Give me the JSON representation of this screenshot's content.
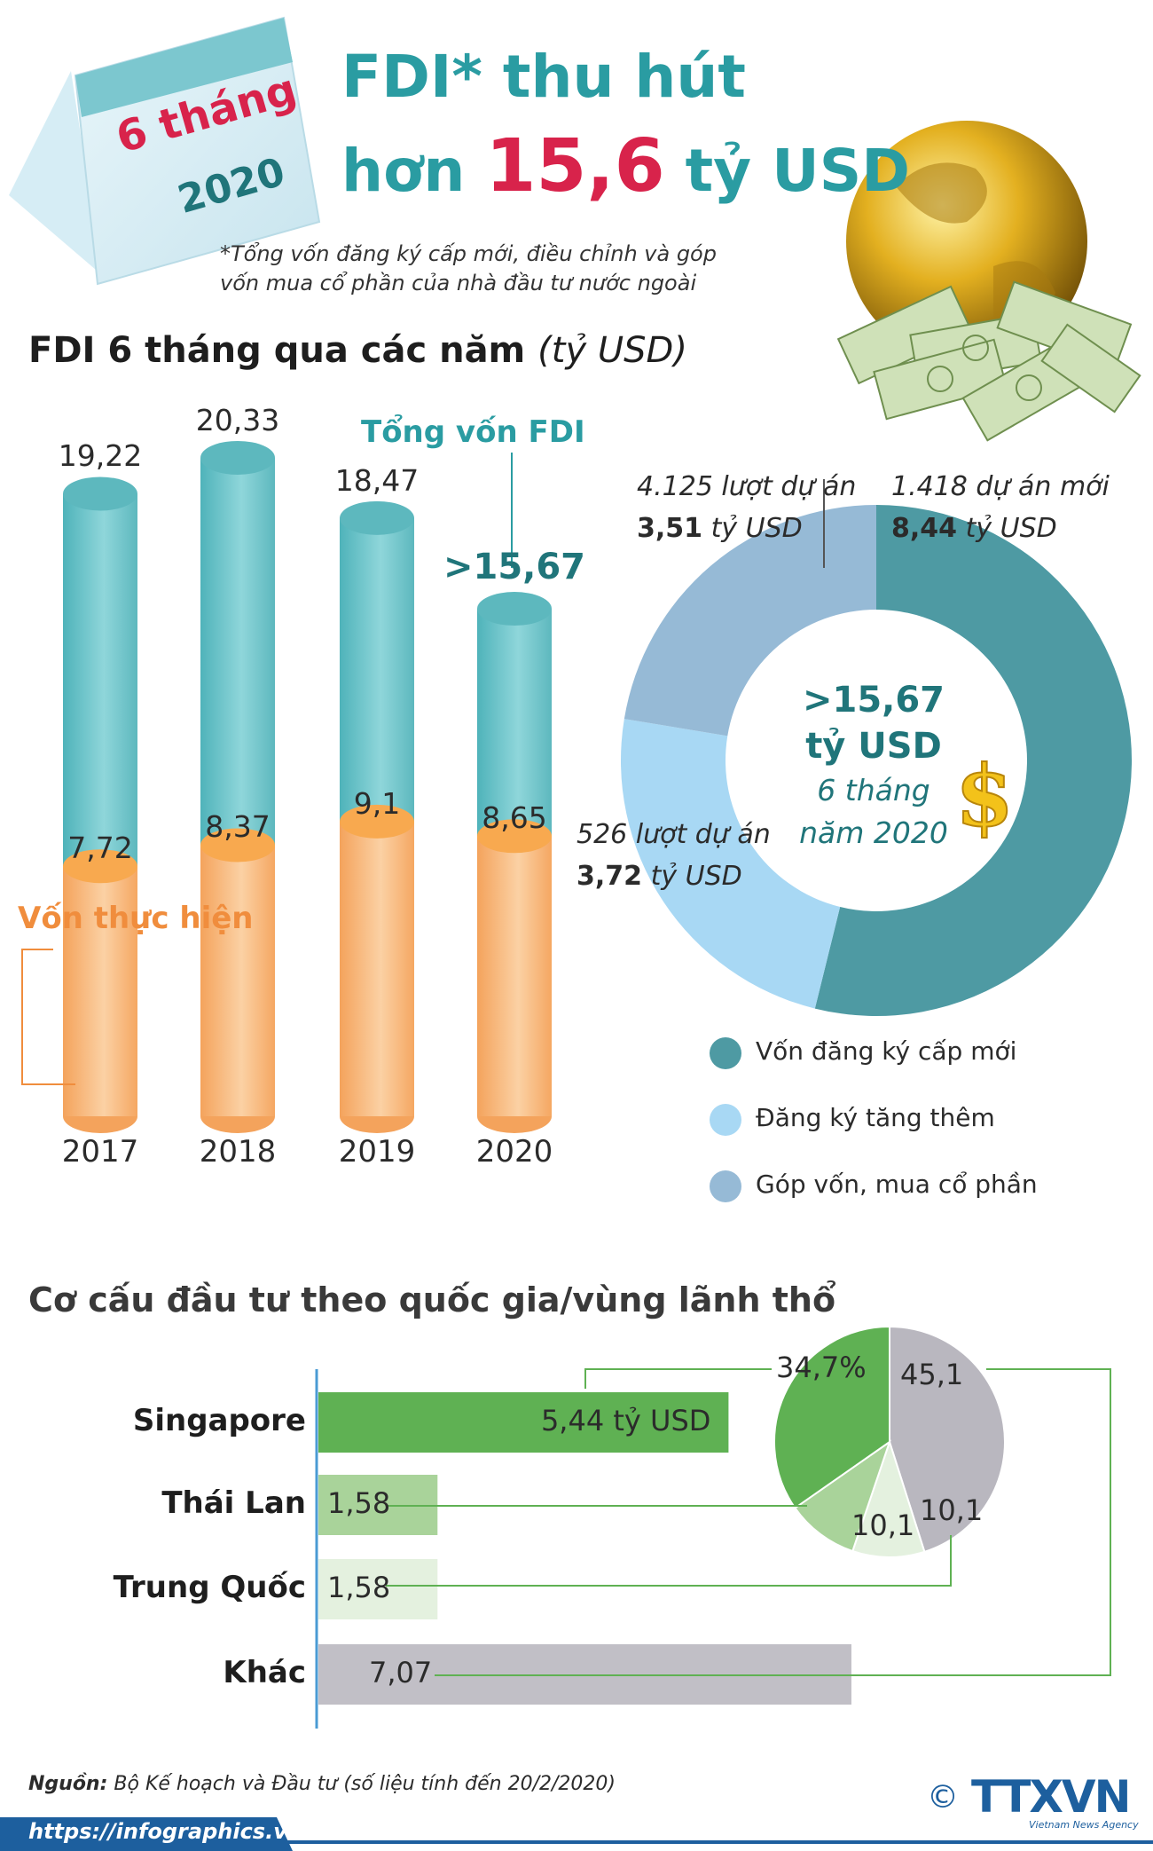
{
  "header": {
    "calendar_line1": "6 tháng",
    "calendar_line2": "2020",
    "title_line1": "FDI* thu hút",
    "title_prefix": "hơn",
    "title_number": "15,6",
    "title_suffix": "tỷ USD",
    "footnote": "*Tổng vốn đăng ký cấp mới, điều chỉnh và góp vốn mua cổ phần của nhà đầu tư nước ngoài"
  },
  "chart_data": [
    {
      "type": "bar",
      "title": "FDI 6 tháng qua các năm",
      "unit": "(tỷ USD)",
      "categories": [
        "2017",
        "2018",
        "2019",
        "2020"
      ],
      "series": [
        {
          "name": "Tổng vốn FDI",
          "values": [
            19.22,
            20.33,
            18.47,
            15.67
          ],
          "labels": [
            "19,22",
            "20,33",
            "18,47",
            ">15,67"
          ],
          "color": "#6cc3c8"
        },
        {
          "name": "Vốn thực hiện",
          "values": [
            7.72,
            8.37,
            9.1,
            8.65
          ],
          "labels": [
            "7,72",
            "8,37",
            "9,1",
            "8,65"
          ],
          "color": "#f7a865"
        }
      ]
    },
    {
      "type": "pie",
      "subtype": "donut",
      "center": {
        "line1": ">15,67",
        "line2": "tỷ USD",
        "line3": "6 tháng",
        "line4": "năm 2020"
      },
      "slices": [
        {
          "name": "Vốn đăng ký cấp mới",
          "value": 8.44,
          "projects": "1.418 dự án mới",
          "value_label": "8,44",
          "color": "#4e9aa3"
        },
        {
          "name": "Đăng ký tăng thêm",
          "value": 3.72,
          "projects": "526 lượt dự án",
          "value_label": "3,72",
          "color": "#a8d8f4"
        },
        {
          "name": "Góp vốn, mua cổ phần",
          "value": 3.51,
          "projects": "4.125 lượt dự án",
          "value_label": "3,51",
          "color": "#96bad6"
        }
      ],
      "unit": "tỷ USD"
    },
    {
      "type": "bar",
      "orientation": "horizontal",
      "title": "Cơ cấu đầu tư theo quốc gia/vùng lãnh thổ",
      "categories": [
        "Singapore",
        "Thái Lan",
        "Trung Quốc",
        "Khác"
      ],
      "values": [
        5.44,
        1.58,
        1.58,
        7.07
      ],
      "labels": [
        "5,44 tỷ USD",
        "1,58",
        "1,58",
        "7,07"
      ],
      "colors": [
        "#5fb153",
        "#a9d39a",
        "#e4f1df",
        "#c1bfc6"
      ]
    },
    {
      "type": "pie",
      "slices": [
        {
          "name": "Singapore",
          "value": 34.7,
          "label": "34,7%",
          "color": "#5fb153"
        },
        {
          "name": "Thái Lan",
          "value": 10.1,
          "label": "10,1",
          "color": "#a9d39a"
        },
        {
          "name": "Trung Quốc",
          "value": 10.1,
          "label": "10,1",
          "color": "#e4f1df"
        },
        {
          "name": "Khác",
          "value": 45.1,
          "label": "45,1",
          "color": "#b9b7bf"
        }
      ]
    }
  ],
  "footer": {
    "source_label": "Nguồn:",
    "source_text": "Bộ Kế hoạch và Đầu tư (số liệu tính đến 20/2/2020)",
    "url": "https://infographics.vn",
    "copyright": "©",
    "logo": "TTXVN",
    "logo_sub": "Vietnam News Agency"
  }
}
